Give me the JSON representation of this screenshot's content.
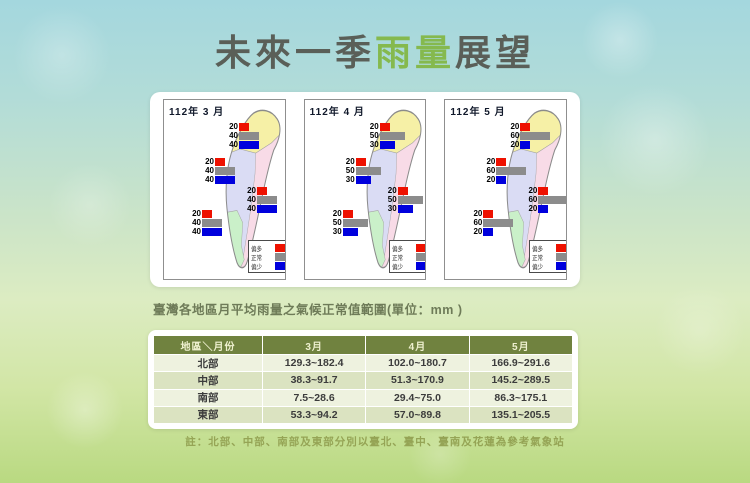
{
  "title": {
    "pre": "未來一季",
    "highlight": "雨量",
    "post": "展望"
  },
  "colors": {
    "title_text": "#5a5f58",
    "title_highlight": "#85b94e",
    "bar_more": "#ee1100",
    "bar_normal": "#8c8c8c",
    "bar_less": "#0000dd",
    "table_header_bg": "#70823f",
    "map_north": "#f6f0a6",
    "map_west": "#dadcf4",
    "map_east": "#f8dbe7",
    "map_south": "#caf0c9"
  },
  "chart_data": [
    {
      "type": "bar",
      "orientation": "horizontal",
      "title": "112年 3 月",
      "legend": [
        "偏多",
        "正常",
        "偏少"
      ],
      "groups": [
        {
          "position": "north",
          "values": [
            20,
            40,
            40
          ]
        },
        {
          "position": "central",
          "values": [
            20,
            40,
            40
          ]
        },
        {
          "position": "east",
          "values": [
            20,
            40,
            40
          ]
        },
        {
          "position": "south",
          "values": [
            20,
            40,
            40
          ]
        }
      ]
    },
    {
      "type": "bar",
      "orientation": "horizontal",
      "title": "112年 4 月",
      "legend": [
        "偏多",
        "正常",
        "偏少"
      ],
      "groups": [
        {
          "position": "north",
          "values": [
            20,
            50,
            30
          ]
        },
        {
          "position": "central",
          "values": [
            20,
            50,
            30
          ]
        },
        {
          "position": "east",
          "values": [
            20,
            50,
            30
          ]
        },
        {
          "position": "south",
          "values": [
            20,
            50,
            30
          ]
        }
      ]
    },
    {
      "type": "bar",
      "orientation": "horizontal",
      "title": "112年 5 月",
      "legend": [
        "偏多",
        "正常",
        "偏少"
      ],
      "groups": [
        {
          "position": "north",
          "values": [
            20,
            60,
            20
          ]
        },
        {
          "position": "central",
          "values": [
            20,
            60,
            20
          ]
        },
        {
          "position": "east",
          "values": [
            20,
            60,
            20
          ]
        },
        {
          "position": "south",
          "values": [
            20,
            60,
            20
          ]
        }
      ]
    }
  ],
  "table": {
    "caption": "臺灣各地區月平均雨量之氣候正常值範圍(單位：mm )",
    "headers": [
      "地區＼月份",
      "3月",
      "4月",
      "5月"
    ],
    "rows": [
      [
        "北部",
        "129.3~182.4",
        "102.0~180.7",
        "166.9~291.6"
      ],
      [
        "中部",
        "38.3~91.7",
        "51.3~170.9",
        "145.2~289.5"
      ],
      [
        "南部",
        "7.5~28.6",
        "29.4~75.0",
        "86.3~175.1"
      ],
      [
        "東部",
        "53.3~94.2",
        "57.0~89.8",
        "135.1~205.5"
      ]
    ]
  },
  "note": "註：北部、中部、南部及東部分別以臺北、臺中、臺南及花蓮為參考氣象站"
}
